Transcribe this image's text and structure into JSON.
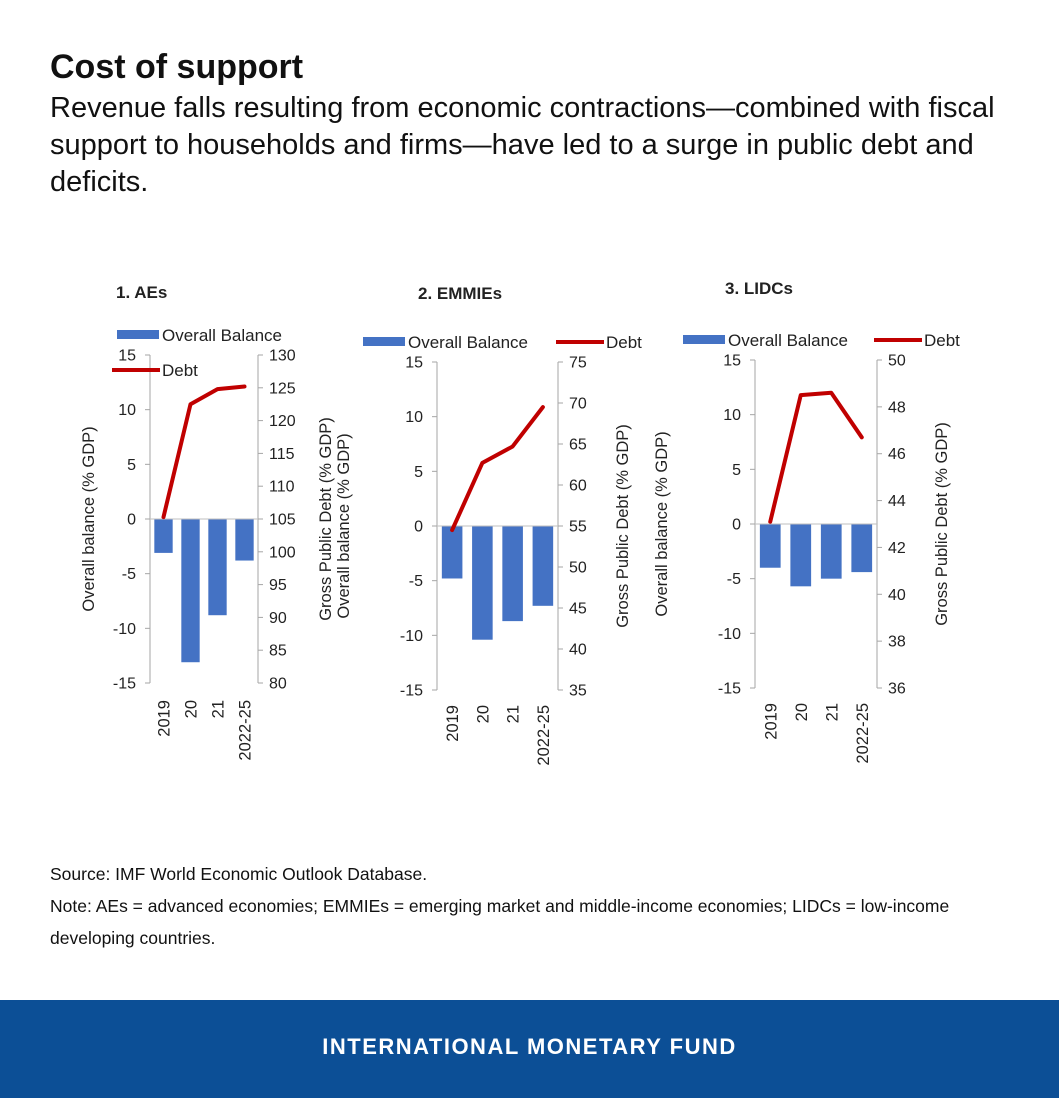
{
  "title": "Cost of support",
  "subtitle": "Revenue falls resulting from economic contractions—combined with fiscal support to households and firms—have led to a surge in public debt and deficits.",
  "source": "Source: IMF World Economic Outlook Database.",
  "note": "Note: AEs = advanced economies; EMMIEs = emerging market and middle-income economies; LIDCs = low-income developing countries.",
  "footer": "INTERNATIONAL MONETARY FUND",
  "colors": {
    "bar": "#4472c4",
    "line": "#c00000",
    "footer_bg": "#0c4f96"
  },
  "chart_data": [
    {
      "type": "bar",
      "title": "1. AEs",
      "categories": [
        "2019",
        "20",
        "21",
        "2022-25"
      ],
      "ylabel": "Overall balance (% GDP)",
      "y2label": "Gross Public Debt (% GDP)",
      "ylim": [
        -15,
        15
      ],
      "yticks": [
        -15,
        -10,
        -5,
        0,
        5,
        10,
        15
      ],
      "y2lim": [
        80,
        130
      ],
      "y2ticks": [
        80,
        85,
        90,
        95,
        100,
        105,
        110,
        115,
        120,
        125,
        130
      ],
      "legend": "two-row",
      "series": [
        {
          "name": "Overall Balance",
          "type": "bar",
          "axis": "left",
          "values": [
            -3.1,
            -13.1,
            -8.8,
            -3.8
          ]
        },
        {
          "name": "Debt",
          "type": "line",
          "axis": "right",
          "values": [
            105.3,
            122.5,
            124.8,
            125.2
          ]
        }
      ]
    },
    {
      "type": "bar",
      "title": "2. EMMIEs",
      "categories": [
        "2019",
        "20",
        "21",
        "2022-25"
      ],
      "ylabel": "Overall balance (% GDP)",
      "y2label": "Gross Public Debt (% GDP)",
      "ylim": [
        -15,
        15
      ],
      "yticks": [
        -15,
        -10,
        -5,
        0,
        5,
        10,
        15
      ],
      "y2lim": [
        35,
        75
      ],
      "y2ticks": [
        35,
        40,
        45,
        50,
        55,
        60,
        65,
        70,
        75
      ],
      "legend": "one-row",
      "series": [
        {
          "name": "Overall Balance",
          "type": "bar",
          "axis": "left",
          "values": [
            -4.8,
            -10.4,
            -8.7,
            -7.3
          ]
        },
        {
          "name": "Debt",
          "type": "line",
          "axis": "right",
          "values": [
            54.5,
            62.7,
            64.7,
            69.5
          ]
        }
      ]
    },
    {
      "type": "bar",
      "title": "3. LIDCs",
      "categories": [
        "2019",
        "20",
        "21",
        "2022-25"
      ],
      "ylabel": "Overall balance (% GDP)",
      "y2label": "Gross Public Debt (% GDP)",
      "ylim": [
        -15,
        15
      ],
      "yticks": [
        -15,
        -10,
        -5,
        0,
        5,
        10,
        15
      ],
      "y2lim": [
        36,
        50
      ],
      "y2ticks": [
        36,
        38,
        40,
        42,
        44,
        46,
        48,
        50
      ],
      "legend": "one-row",
      "series": [
        {
          "name": "Overall Balance",
          "type": "bar",
          "axis": "left",
          "values": [
            -4.0,
            -5.7,
            -5.0,
            -4.4
          ]
        },
        {
          "name": "Debt",
          "type": "line",
          "axis": "right",
          "values": [
            43.1,
            48.5,
            48.6,
            46.7
          ]
        }
      ]
    }
  ]
}
